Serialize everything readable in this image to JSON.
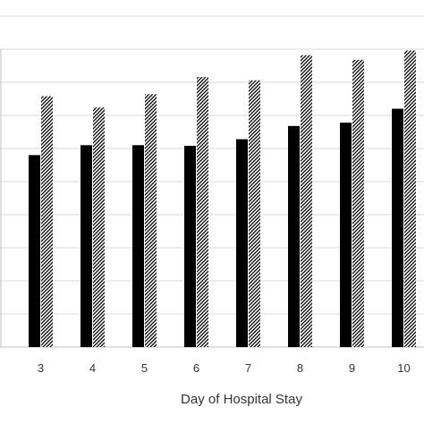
{
  "chart_data": {
    "type": "bar",
    "xlabel": "Day of Hospital Stay",
    "categories": [
      "3",
      "4",
      "5",
      "6",
      "7",
      "8",
      "9",
      "10"
    ],
    "series": [
      {
        "values": [
          58,
          61,
          61,
          60.8,
          62.8,
          66.8,
          67.8,
          72
        ],
        "color": "#000000",
        "pattern": "solid"
      },
      {
        "values": [
          75.8,
          72.4,
          76.4,
          81.6,
          80.6,
          88.2,
          86.8,
          89.6
        ],
        "color": "#000000",
        "pattern": "diagonal-hatch"
      }
    ],
    "ylim": [
      0,
      100
    ],
    "y_gridlines": [
      10,
      20,
      30,
      40,
      50,
      60,
      70,
      80,
      90,
      100
    ],
    "grid": true
  }
}
